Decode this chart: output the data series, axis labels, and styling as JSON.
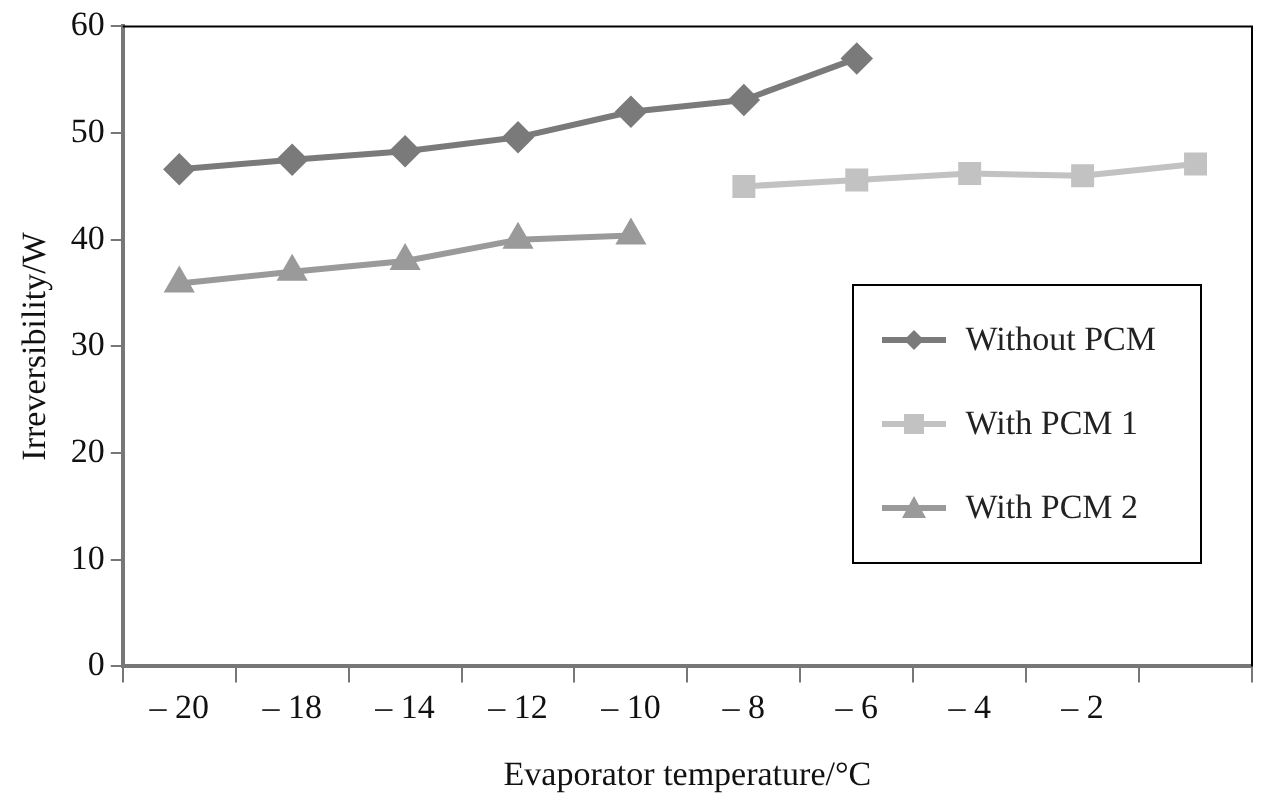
{
  "chart_data": {
    "type": "line",
    "xlabel": "Evaporator temperature/°C",
    "ylabel": "Irreversibility/W",
    "categories": [
      "– 20",
      "– 18",
      "– 14",
      "– 12",
      "– 10",
      "– 8",
      "– 6",
      "– 4",
      "– 2",
      null
    ],
    "series": [
      {
        "name": "Without PCM",
        "color": "#7a7a7a",
        "marker": "diamond",
        "values": [
          46.6,
          47.5,
          48.3,
          49.6,
          52,
          53.1,
          57,
          null,
          null,
          null
        ]
      },
      {
        "name": "With PCM 1",
        "color": "#c2c2c2",
        "marker": "square",
        "values": [
          null,
          null,
          null,
          null,
          null,
          45,
          45.6,
          46.2,
          46,
          47.1
        ]
      },
      {
        "name": "With PCM 2",
        "color": "#9a9a9a",
        "marker": "triangle",
        "values": [
          35.9,
          37,
          38,
          40,
          40.4,
          null,
          null,
          null,
          null,
          null
        ]
      }
    ],
    "ylim": [
      0,
      60
    ],
    "yticks": [
      0,
      10,
      20,
      30,
      40,
      50,
      60
    ],
    "grid": false,
    "legend": "bottom right",
    "line_style": "solid"
  }
}
